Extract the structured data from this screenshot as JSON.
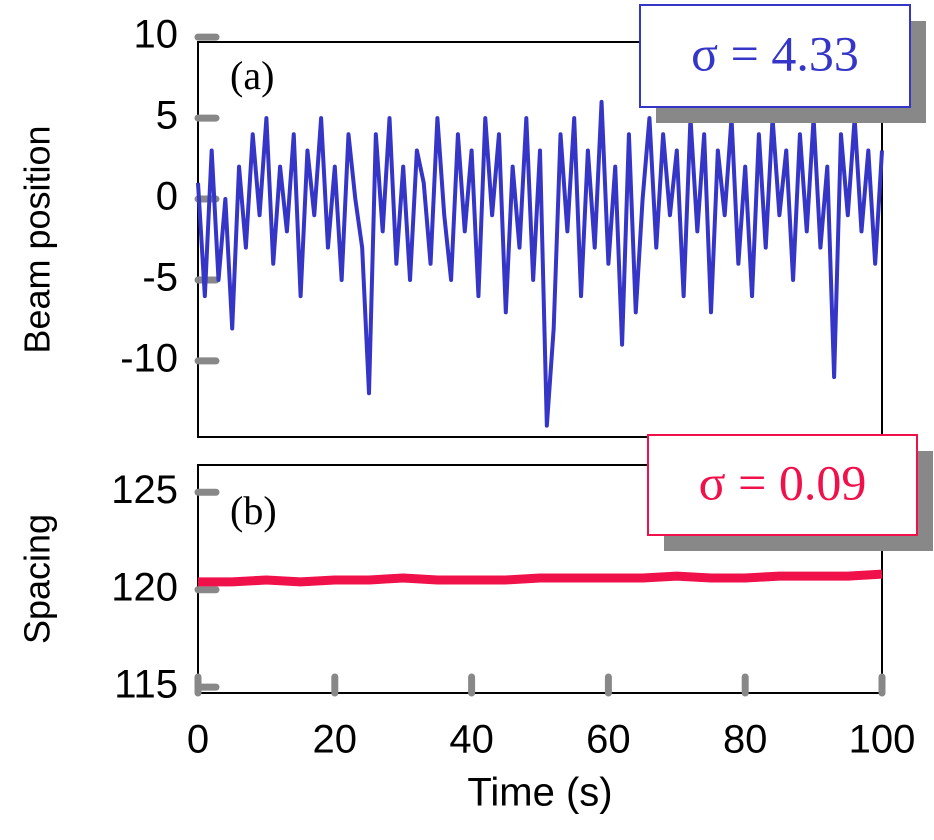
{
  "chart_data": [
    {
      "type": "line",
      "ylabel": "Beam position",
      "annotations": [
        "(a)",
        "σ = 4.33"
      ],
      "x": [
        0,
        1,
        2,
        3,
        4,
        5,
        6,
        7,
        8,
        9,
        10,
        11,
        12,
        13,
        14,
        15,
        16,
        17,
        18,
        19,
        20,
        21,
        22,
        23,
        24,
        25,
        26,
        27,
        28,
        29,
        30,
        31,
        32,
        33,
        34,
        35,
        36,
        37,
        38,
        39,
        40,
        41,
        42,
        43,
        44,
        45,
        46,
        47,
        48,
        49,
        50,
        51,
        52,
        53,
        54,
        55,
        56,
        57,
        58,
        59,
        60,
        61,
        62,
        63,
        64,
        65,
        66,
        67,
        68,
        69,
        70,
        71,
        72,
        73,
        74,
        75,
        76,
        77,
        78,
        79,
        80,
        81,
        82,
        83,
        84,
        85,
        86,
        87,
        88,
        89,
        90,
        91,
        92,
        93,
        94,
        95,
        96,
        97,
        98,
        99,
        100
      ],
      "series": [
        {
          "name": "Beam position",
          "color": "#3535c8",
          "values": [
            1,
            -6,
            3,
            -5,
            0,
            -8,
            2,
            -3,
            4,
            -1,
            5,
            -4,
            2,
            -2,
            4,
            -6,
            3,
            -1,
            5,
            -3,
            2,
            -5,
            4,
            0,
            -3,
            -12,
            4,
            -2,
            5,
            -4,
            2,
            -5,
            3,
            1,
            -4,
            5,
            -1,
            -5,
            4,
            -2,
            3,
            -6,
            5,
            -1,
            4,
            -7,
            2,
            -3,
            5,
            -5,
            3,
            -14,
            -8,
            4,
            -2,
            5,
            -6,
            3,
            -3,
            6,
            -4,
            2,
            -9,
            4,
            -7,
            0,
            5,
            -3,
            4,
            -1,
            3,
            -6,
            5,
            -2,
            4,
            -7,
            3,
            -1,
            5,
            -4,
            2,
            -6,
            4,
            -3,
            5,
            -1,
            3,
            -5,
            4,
            -2,
            5,
            -3,
            2,
            -11,
            4,
            -1,
            5,
            -2,
            3,
            -4,
            3
          ]
        }
      ],
      "xlim": [
        0,
        100
      ],
      "ylim": [
        -14.7,
        9.7
      ],
      "yticks": [
        10,
        5,
        0,
        -5,
        -10
      ]
    },
    {
      "type": "line",
      "ylabel": "Spacing",
      "xlabel": "Time (s)",
      "annotations": [
        "(b)",
        "σ = 0.09"
      ],
      "x": [
        0,
        5,
        10,
        15,
        20,
        25,
        30,
        35,
        40,
        45,
        50,
        55,
        60,
        65,
        70,
        75,
        80,
        85,
        90,
        95,
        100
      ],
      "series": [
        {
          "name": "Spacing",
          "color": "#f0104a",
          "values": [
            120.4,
            120.4,
            120.5,
            120.4,
            120.5,
            120.5,
            120.6,
            120.5,
            120.5,
            120.5,
            120.6,
            120.6,
            120.6,
            120.6,
            120.7,
            120.6,
            120.6,
            120.7,
            120.7,
            120.7,
            120.8
          ]
        }
      ],
      "xlim": [
        0,
        100
      ],
      "ylim": [
        114.7,
        126.4
      ],
      "yticks": [
        125,
        120,
        115
      ],
      "xticks": [
        0,
        20,
        40,
        60,
        80,
        100
      ]
    }
  ]
}
